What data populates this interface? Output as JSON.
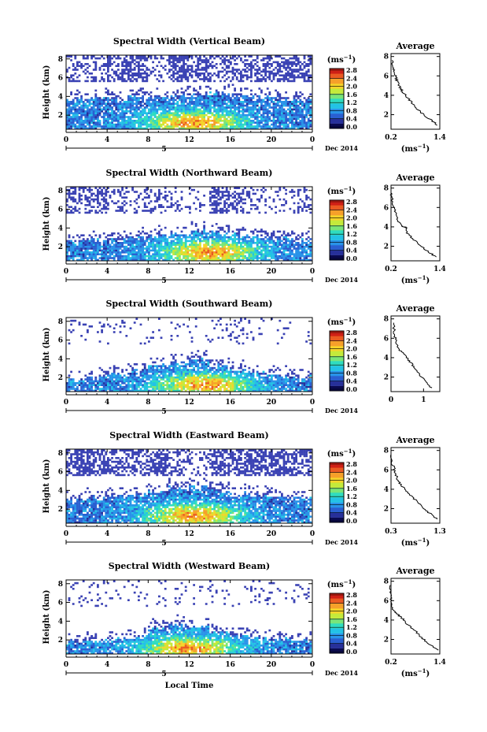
{
  "colors": {
    "ramp": [
      "#0a0a50",
      "#27309a",
      "#2a5fd1",
      "#2993e8",
      "#23c2e6",
      "#2fdcc0",
      "#79e57a",
      "#c4ea3b",
      "#f5d42a",
      "#f6a02a",
      "#ea5a22",
      "#cf2016"
    ],
    "sparse": "#3a42b4"
  },
  "chart_data": [
    {
      "type": "heatmap",
      "title": "Spectral Width (Vertical Beam)",
      "ylabel": "Height (km)",
      "xticks": [
        "0",
        "4",
        "8",
        "12",
        "16",
        "20",
        "0"
      ],
      "date_tick": "5",
      "date_label": "Dec 2014",
      "xlabel": "",
      "yticks": [
        "2",
        "4",
        "6",
        "8"
      ],
      "colorbar_unit": "(ms⁻¹)",
      "colorbar_ticks": [
        "0.0",
        "0.4",
        "0.8",
        "1.2",
        "1.6",
        "2.0",
        "2.4",
        "2.8"
      ],
      "avg_title": "Average",
      "avg_yticks": [
        "2",
        "4",
        "6",
        "8"
      ],
      "avg_xticks": [
        "0.2",
        "1.4"
      ],
      "avg_xrange": [
        0.2,
        1.4
      ],
      "avg_unit": "(ms⁻¹)",
      "avg_profile": [
        [
          1.35,
          0.9
        ],
        [
          1.2,
          1.4
        ],
        [
          1.0,
          2.0
        ],
        [
          0.85,
          2.6
        ],
        [
          0.72,
          3.2
        ],
        [
          0.6,
          3.8
        ],
        [
          0.5,
          4.3
        ],
        [
          0.42,
          4.8
        ],
        [
          0.36,
          5.3
        ],
        [
          0.32,
          5.8
        ],
        [
          0.28,
          6.4
        ],
        [
          0.25,
          7.0
        ],
        [
          0.22,
          7.6
        ]
      ],
      "low_top": [
        3.7,
        3.8,
        3.7,
        3.9,
        3.8,
        4.0,
        4.2,
        4.3,
        4.2,
        3.9,
        3.8,
        3.7
      ],
      "upper_layer": [
        [
          0.3,
          0.3,
          0.6,
          0.6,
          0.2,
          0.7,
          0.5,
          0.3,
          0.5,
          0.5,
          0.5,
          0.5
        ]
      ],
      "hot_center": [
        12.5,
        1.2
      ]
    },
    {
      "type": "heatmap",
      "title": "Spectral Width (Northward Beam)",
      "ylabel": "Height (km)",
      "xticks": [
        "0",
        "4",
        "8",
        "12",
        "16",
        "20",
        "0"
      ],
      "date_tick": "5",
      "date_label": "Dec 2014",
      "xlabel": "",
      "yticks": [
        "2",
        "4",
        "6",
        "8"
      ],
      "colorbar_unit": "(ms⁻¹)",
      "colorbar_ticks": [
        "0.0",
        "0.4",
        "0.8",
        "1.2",
        "1.6",
        "2.0",
        "2.4",
        "2.8"
      ],
      "avg_title": "Average",
      "avg_yticks": [
        "2",
        "4",
        "6",
        "8"
      ],
      "avg_xticks": [
        "0.2",
        "1.4"
      ],
      "avg_xrange": [
        0.2,
        1.4
      ],
      "avg_unit": "(ms⁻¹)",
      "avg_profile": [
        [
          1.3,
          0.9
        ],
        [
          1.1,
          1.5
        ],
        [
          0.9,
          2.2
        ],
        [
          0.7,
          2.9
        ],
        [
          0.55,
          3.6
        ],
        [
          0.6,
          3.9
        ],
        [
          0.45,
          4.1
        ],
        [
          0.35,
          4.8
        ],
        [
          0.3,
          5.5
        ],
        [
          0.25,
          6.2
        ],
        [
          0.22,
          7.0
        ],
        [
          0.2,
          7.6
        ]
      ],
      "low_top": [
        2.6,
        2.7,
        2.8,
        3.0,
        3.2,
        3.4,
        3.6,
        3.5,
        3.3,
        3.1,
        2.8,
        2.7
      ],
      "upper_layer": [
        [
          0.5,
          0.5,
          0.3,
          0.2,
          0.3,
          0.2,
          0.1,
          0.5,
          0.4,
          0.2,
          0.2,
          0.3
        ]
      ],
      "hot_center": [
        14.0,
        1.4
      ]
    },
    {
      "type": "heatmap",
      "title": "Spectral Width (Southward Beam)",
      "ylabel": "Height (km)",
      "xticks": [
        "0",
        "4",
        "8",
        "12",
        "16",
        "20",
        "0"
      ],
      "date_tick": "5",
      "date_label": "Dec 2014",
      "xlabel": "",
      "yticks": [
        "2",
        "4",
        "6",
        "8"
      ],
      "colorbar_unit": "(ms⁻¹)",
      "colorbar_ticks": [
        "0.0",
        "0.4",
        "0.8",
        "1.2",
        "1.6",
        "2.0",
        "2.4",
        "2.8"
      ],
      "avg_title": "Average",
      "avg_yticks": [
        "2",
        "4",
        "6",
        "8"
      ],
      "avg_xticks": [
        "0",
        "1"
      ],
      "avg_xrange": [
        0,
        1.5
      ],
      "avg_unit": "",
      "avg_profile": [
        [
          1.25,
          0.9
        ],
        [
          1.05,
          1.5
        ],
        [
          0.9,
          2.2
        ],
        [
          0.75,
          2.9
        ],
        [
          0.6,
          3.5
        ],
        [
          0.5,
          4.0
        ],
        [
          0.35,
          4.5
        ],
        [
          0.2,
          5.0
        ],
        [
          0.15,
          5.8
        ],
        [
          0.1,
          6.5
        ],
        [
          0.08,
          7.6
        ]
      ],
      "low_top": [
        1.8,
        2.0,
        2.3,
        2.8,
        3.2,
        3.6,
        4.0,
        3.2,
        2.8,
        2.4,
        2.2,
        2.0
      ],
      "upper_layer": [
        [
          0.1,
          0.1,
          0.1,
          0.05,
          0.05,
          0.05,
          0.05,
          0.1,
          0.15,
          0.05,
          0.1,
          0.05
        ]
      ],
      "hot_center": [
        13.5,
        1.2
      ]
    },
    {
      "type": "heatmap",
      "title": "Spectral Width (Eastward Beam)",
      "ylabel": "Height (km)",
      "xticks": [
        "0",
        "4",
        "8",
        "12",
        "16",
        "20",
        "0"
      ],
      "date_tick": "5",
      "date_label": "Dec 2014",
      "xlabel": "",
      "yticks": [
        "2",
        "4",
        "6",
        "8"
      ],
      "colorbar_unit": "(ms⁻¹)",
      "colorbar_ticks": [
        "0.0",
        "0.4",
        "0.8",
        "1.2",
        "1.6",
        "2.0",
        "2.4",
        "2.8"
      ],
      "avg_title": "Average",
      "avg_yticks": [
        "2",
        "4",
        "6",
        "8"
      ],
      "avg_xticks": [
        "0.3",
        "1.3"
      ],
      "avg_xrange": [
        0.3,
        1.3
      ],
      "avg_unit": "(ms⁻¹)",
      "avg_profile": [
        [
          1.25,
          0.9
        ],
        [
          1.1,
          1.5
        ],
        [
          0.95,
          2.1
        ],
        [
          0.82,
          2.8
        ],
        [
          0.7,
          3.4
        ],
        [
          0.58,
          4.0
        ],
        [
          0.48,
          4.6
        ],
        [
          0.42,
          5.2
        ],
        [
          0.38,
          5.9
        ],
        [
          0.33,
          6.6
        ],
        [
          0.3,
          7.6
        ]
      ],
      "low_top": [
        3.0,
        3.2,
        3.3,
        3.6,
        3.9,
        4.2,
        4.4,
        4.0,
        3.6,
        3.4,
        3.3,
        3.1
      ],
      "upper_layer": [
        [
          0.6,
          0.6,
          0.5,
          0.5,
          0.6,
          0.4,
          0.2,
          0.6,
          0.6,
          0.6,
          0.6,
          0.5
        ]
      ],
      "hot_center": [
        12.5,
        1.3
      ]
    },
    {
      "type": "heatmap",
      "title": "Spectral Width (Westward Beam)",
      "ylabel": "Height (km)",
      "xticks": [
        "0",
        "4",
        "8",
        "12",
        "16",
        "20",
        "0"
      ],
      "date_tick": "5",
      "date_label": "Dec 2014",
      "xlabel": "Local Time",
      "yticks": [
        "2",
        "4",
        "6",
        "8"
      ],
      "colorbar_unit": "(ms⁻¹)",
      "colorbar_ticks": [
        "0.0",
        "0.4",
        "0.8",
        "1.2",
        "1.6",
        "2.0",
        "2.4",
        "2.8"
      ],
      "avg_title": "Average",
      "avg_yticks": [
        "2",
        "4",
        "6",
        "8"
      ],
      "avg_xticks": [
        "0.2",
        "1.4"
      ],
      "avg_xrange": [
        0.2,
        1.4
      ],
      "avg_unit": "(ms⁻¹)",
      "avg_profile": [
        [
          1.35,
          0.9
        ],
        [
          1.15,
          1.5
        ],
        [
          0.95,
          2.2
        ],
        [
          0.8,
          2.9
        ],
        [
          0.62,
          3.5
        ],
        [
          0.5,
          4.1
        ],
        [
          0.35,
          4.6
        ],
        [
          0.25,
          5.0
        ],
        [
          0.22,
          5.8
        ],
        [
          0.2,
          6.5
        ],
        [
          0.18,
          7.6
        ]
      ],
      "low_top": [
        1.8,
        1.9,
        2.1,
        2.4,
        3.2,
        3.6,
        3.3,
        2.8,
        2.5,
        2.2,
        2.0,
        1.9
      ],
      "upper_layer": [
        [
          0.1,
          0.1,
          0.05,
          0.05,
          0.1,
          0.05,
          0.05,
          0.1,
          0.05,
          0.1,
          0.05,
          0.1
        ]
      ],
      "hot_center": [
        12.0,
        1.1
      ]
    }
  ]
}
